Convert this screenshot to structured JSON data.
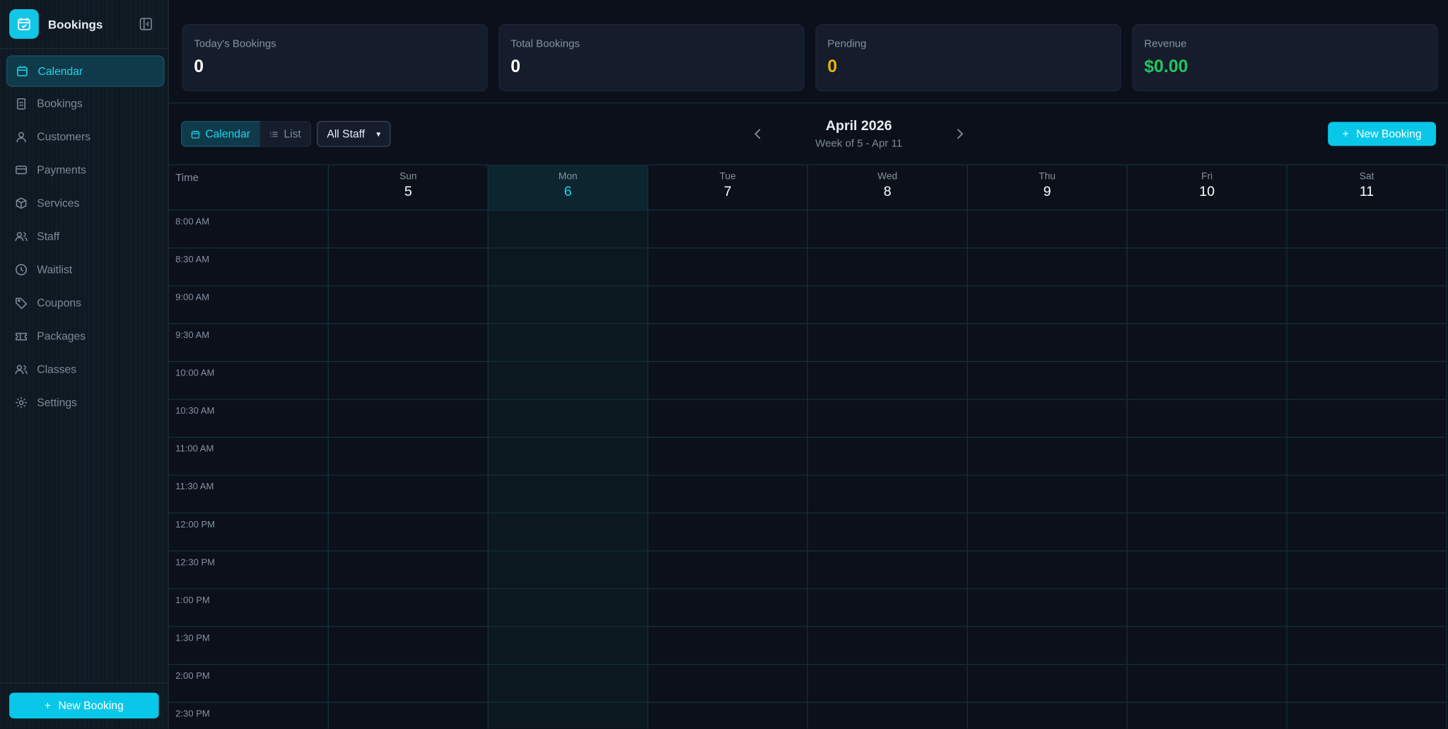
{
  "sidebar": {
    "brand": "Bookings",
    "nav": [
      "Calendar",
      "Bookings",
      "Customers",
      "Payments",
      "Services",
      "Staff",
      "Waitlist",
      "Coupons",
      "Packages",
      "Classes",
      "Settings"
    ],
    "new_booking": "New Booking"
  },
  "stats": [
    {
      "label": "Today's Bookings",
      "value": "0"
    },
    {
      "label": "Total Bookings",
      "value": "0"
    },
    {
      "label": "Pending",
      "value": "0"
    },
    {
      "label": "Revenue",
      "value": "$0.00"
    }
  ],
  "toolbar": {
    "views": [
      "Calendar",
      "List"
    ],
    "staff_filter": "All Staff",
    "month": "April 2026",
    "week": "Week of 5 - Apr 11",
    "new_booking": "New Booking"
  },
  "calendar": {
    "time_header": "Time",
    "days": [
      {
        "name": "Sun",
        "date": "5"
      },
      {
        "name": "Mon",
        "date": "6"
      },
      {
        "name": "Tue",
        "date": "7"
      },
      {
        "name": "Wed",
        "date": "8"
      },
      {
        "name": "Thu",
        "date": "9"
      },
      {
        "name": "Fri",
        "date": "10"
      },
      {
        "name": "Sat",
        "date": "11"
      }
    ],
    "times": [
      "8:00 AM",
      "8:30 AM",
      "9:00 AM",
      "9:30 AM",
      "10:00 AM",
      "10:30 AM",
      "11:00 AM",
      "11:30 AM",
      "12:00 PM",
      "12:30 PM",
      "1:00 PM",
      "1:30 PM",
      "2:00 PM",
      "2:30 PM"
    ]
  }
}
